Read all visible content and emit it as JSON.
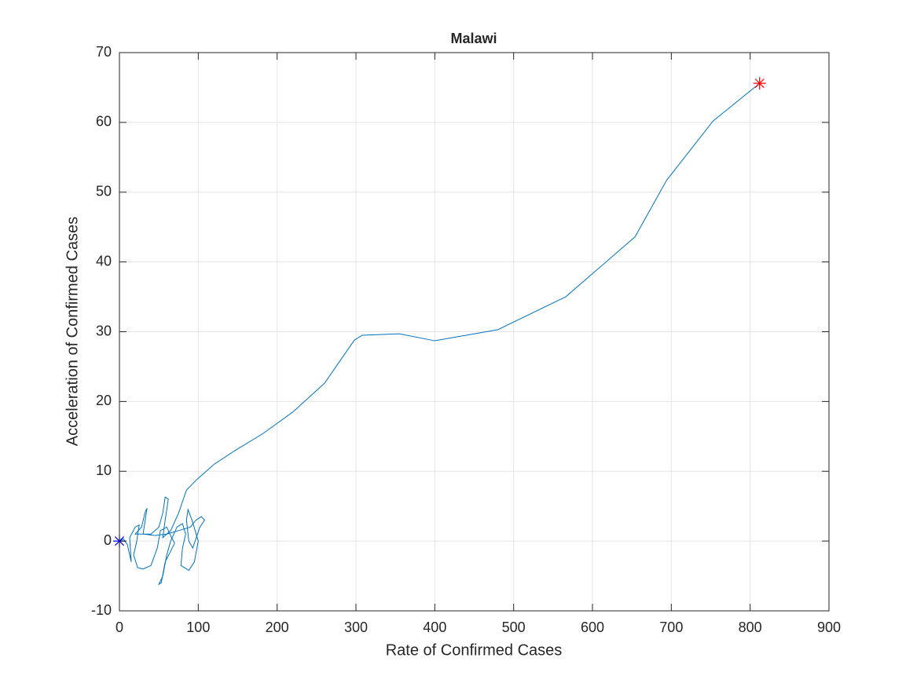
{
  "chart_data": {
    "type": "line",
    "title": "Malawi",
    "xlabel": "Rate of Confirmed Cases",
    "ylabel": "Acceleration of Confirmed Cases",
    "x": [
      0,
      5,
      10,
      15,
      13,
      20,
      25,
      22,
      18,
      23,
      30,
      40,
      48,
      52,
      60,
      66,
      70,
      58,
      53,
      50,
      55,
      60,
      65,
      73,
      80,
      84,
      80,
      78,
      88,
      95,
      100,
      92,
      87,
      85,
      88,
      93,
      102,
      108,
      104,
      97,
      90,
      75,
      60,
      45,
      30,
      35,
      33,
      28,
      20,
      40,
      50,
      55,
      58,
      62,
      58,
      55,
      65,
      75,
      85,
      97,
      120,
      147,
      182,
      220,
      260,
      298,
      308,
      355,
      400,
      480,
      566,
      654,
      694,
      753,
      812
    ],
    "series": [
      {
        "name": "trajectory",
        "color": "#0072bd",
        "values": [
          0,
          0.3,
          -0.5,
          -3,
          0.5,
          2,
          2.3,
          0,
          -2,
          -3.8,
          -4,
          -3.5,
          -1,
          1.5,
          2,
          0.5,
          -0.3,
          -3,
          -6,
          -6.2,
          -5,
          -2,
          0,
          2,
          2.5,
          1,
          -1,
          -3.5,
          -4.2,
          -3,
          0,
          3,
          4.5,
          3,
          0,
          -1,
          2,
          3,
          3.5,
          3,
          2,
          1.5,
          1,
          0.8,
          1,
          4.7,
          4.3,
          2,
          1,
          1,
          2,
          4,
          6.3,
          6,
          3,
          0.5,
          1.5,
          4,
          7.3,
          8.7,
          11,
          13,
          15.4,
          18.5,
          22.6,
          28.8,
          29.5,
          29.7,
          28.7,
          30.3,
          35,
          43.6,
          51.7,
          60.2,
          65.6
        ]
      }
    ],
    "start_marker_color": "#0000ff",
    "end_marker_color": "#ff0000",
    "xlim": [
      0,
      900
    ],
    "xticks": [
      0,
      100,
      200,
      300,
      400,
      500,
      600,
      700,
      800,
      900
    ],
    "ylim": [
      -10,
      70
    ],
    "yticks": [
      -10,
      0,
      10,
      20,
      30,
      40,
      50,
      60,
      70
    ],
    "grid": true
  }
}
